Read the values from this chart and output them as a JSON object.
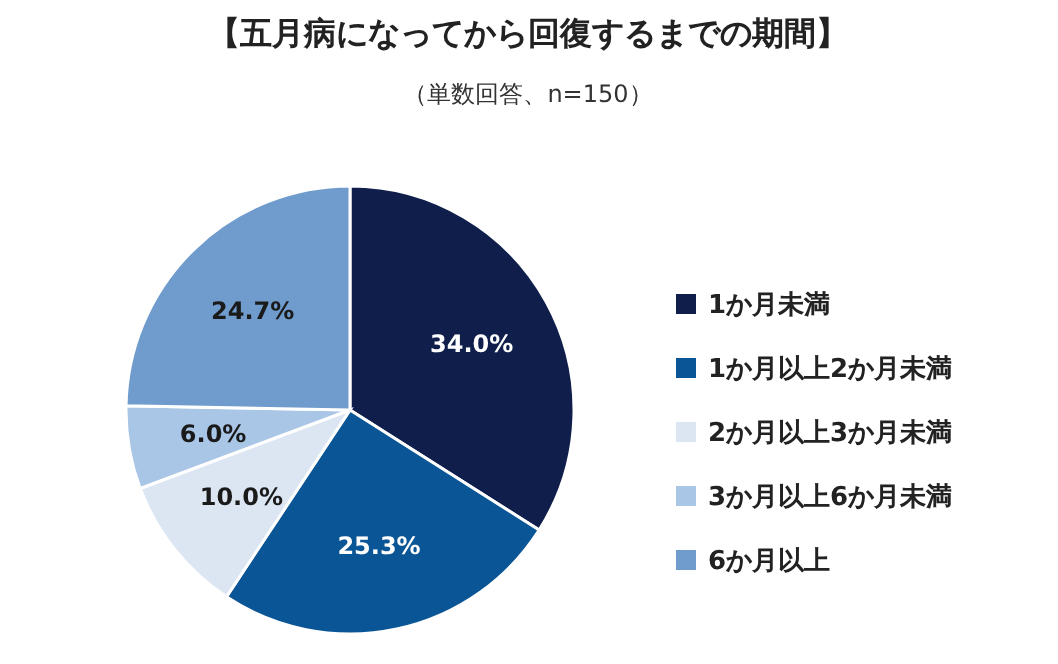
{
  "chart_data": {
    "type": "pie",
    "title": "【五月病になってから回復するまでの期間】",
    "subtitle": "（単数回答、n=150）",
    "categories": [
      "1か月未満",
      "1か月以上2か月未満",
      "2か月以上3か月未満",
      "3か月以上6か月未満",
      "6か月以上"
    ],
    "values": [
      34.0,
      25.3,
      10.0,
      6.0,
      24.7
    ],
    "value_labels": [
      "34.0%",
      "25.3%",
      "10.0%",
      "6.0%",
      "24.7%"
    ],
    "colors": [
      "#0f1e4a",
      "#0a5596",
      "#dce6f2",
      "#a9c6e6",
      "#6f9ccc"
    ],
    "legend": "right"
  }
}
